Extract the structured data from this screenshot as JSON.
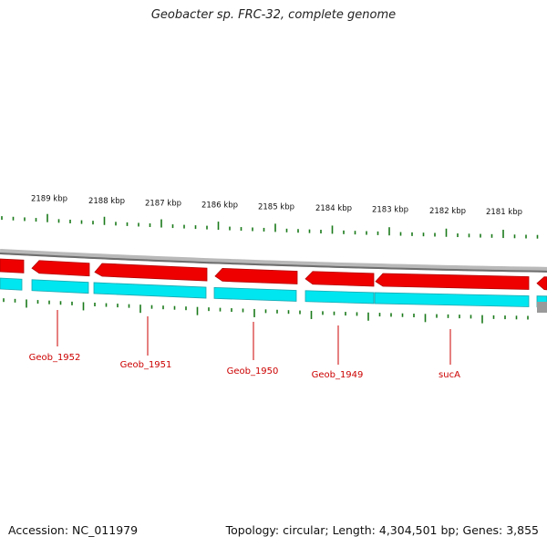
{
  "title": "Geobacter sp. FRC-32, complete genome",
  "footer": {
    "accession": "Accession: NC_011979",
    "summary": "Topology: circular; Length: 4,304,501 bp; Genes: 3,855"
  },
  "colors": {
    "backbone": "#8a8a8a",
    "forward_gene": "#ee0000",
    "cds": "#00e6f0",
    "tick": "#1a7a1a",
    "label": "#cc0000"
  },
  "scale_ticks": [
    {
      "label": "2189 kbp"
    },
    {
      "label": "2188 kbp"
    },
    {
      "label": "2187 kbp"
    },
    {
      "label": "2186 kbp"
    },
    {
      "label": "2185 kbp"
    },
    {
      "label": "2184 kbp"
    },
    {
      "label": "2183 kbp"
    },
    {
      "label": "2182 kbp"
    },
    {
      "label": "2181 kbp"
    }
  ],
  "genes": [
    {
      "label": "Geob_1952"
    },
    {
      "label": "Geob_1951"
    },
    {
      "label": "Geob_1950"
    },
    {
      "label": "Geob_1949"
    },
    {
      "label": "sucA"
    }
  ]
}
